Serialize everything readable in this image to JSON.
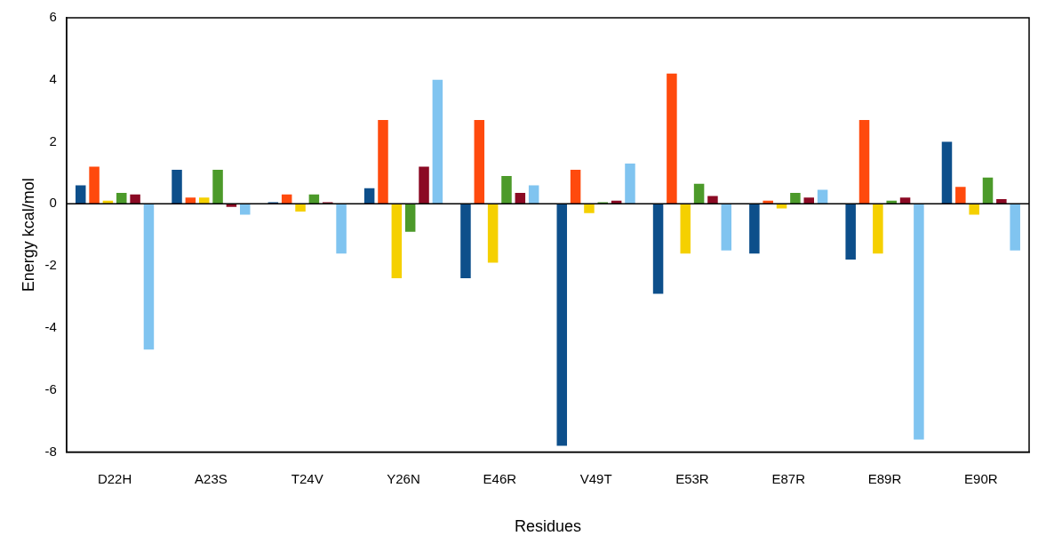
{
  "chart_data": {
    "type": "bar",
    "xlabel": "Residues",
    "ylabel": "Energy kcal/mol",
    "categories": [
      "D22H",
      "A23S",
      "T24V",
      "Y26N",
      "E46R",
      "V49T",
      "E53R",
      "E87R",
      "E89R",
      "E90R"
    ],
    "series": [
      {
        "color": "#0d4f8b",
        "values": [
          0.6,
          1.1,
          0.05,
          0.5,
          -2.4,
          -7.8,
          -2.9,
          -1.6,
          -1.8,
          2.0
        ]
      },
      {
        "color": "#ff4a0d",
        "values": [
          1.2,
          0.2,
          0.3,
          2.7,
          2.7,
          1.1,
          4.2,
          0.1,
          2.7,
          0.55
        ]
      },
      {
        "color": "#f5d000",
        "values": [
          0.1,
          0.2,
          -0.25,
          -2.4,
          -1.9,
          -0.3,
          -1.6,
          -0.15,
          -1.6,
          -0.35
        ]
      },
      {
        "color": "#4c9a2a",
        "values": [
          0.35,
          1.1,
          0.3,
          -0.9,
          0.9,
          0.05,
          0.65,
          0.35,
          0.1,
          0.85
        ]
      },
      {
        "color": "#8b0a24",
        "values": [
          0.3,
          -0.1,
          0.05,
          1.2,
          0.35,
          0.1,
          0.25,
          0.2,
          0.2,
          0.15
        ]
      },
      {
        "color": "#80c4f0",
        "values": [
          -4.7,
          -0.35,
          -1.6,
          4.0,
          0.6,
          1.3,
          -1.5,
          0.45,
          -7.6,
          -1.5
        ]
      }
    ],
    "ylim": [
      -8,
      6
    ],
    "yticks": [
      -8,
      -6,
      -4,
      -2,
      0,
      2,
      4,
      6
    ],
    "ref_lines": [
      {
        "axis": "y",
        "value": 0,
        "color": "#000000"
      }
    ],
    "legend": false
  }
}
